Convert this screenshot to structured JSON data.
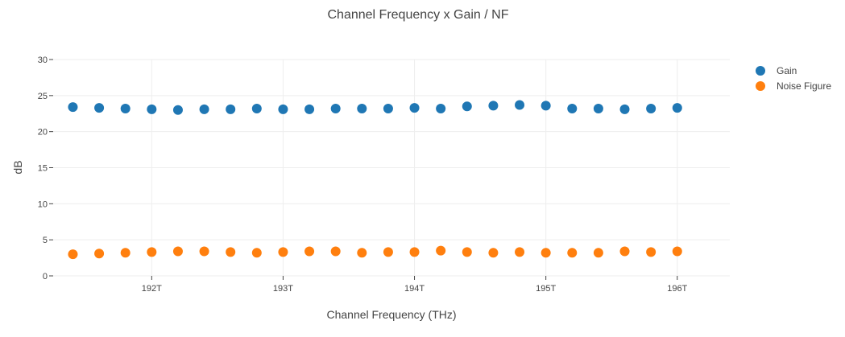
{
  "chart_data": {
    "type": "scatter",
    "title": "Channel Frequency x Gain / NF",
    "xlabel": "Channel Frequency (THz)",
    "ylabel": "dB",
    "xlim": [
      191.25,
      196.4
    ],
    "ylim": [
      0,
      30
    ],
    "x_ticks": [
      192,
      193,
      194,
      195,
      196
    ],
    "x_tick_labels": [
      "192T",
      "193T",
      "194T",
      "195T",
      "196T"
    ],
    "y_ticks": [
      0,
      5,
      10,
      15,
      20,
      25,
      30
    ],
    "y_tick_labels": [
      "0",
      "5",
      "10",
      "15",
      "20",
      "25",
      "30"
    ],
    "grid": true,
    "legend_position": "top-right",
    "x": [
      191.4,
      191.6,
      191.8,
      192.0,
      192.2,
      192.4,
      192.6,
      192.8,
      193.0,
      193.2,
      193.4,
      193.6,
      193.8,
      194.0,
      194.2,
      194.4,
      194.6,
      194.8,
      195.0,
      195.2,
      195.4,
      195.6,
      195.8,
      196.0
    ],
    "series": [
      {
        "name": "Gain",
        "color": "#1f77b4",
        "values": [
          23.4,
          23.3,
          23.2,
          23.1,
          23.0,
          23.1,
          23.1,
          23.2,
          23.1,
          23.1,
          23.2,
          23.2,
          23.2,
          23.3,
          23.2,
          23.5,
          23.6,
          23.7,
          23.6,
          23.2,
          23.2,
          23.1,
          23.2,
          23.3
        ]
      },
      {
        "name": "Noise Figure",
        "color": "#ff7f0e",
        "values": [
          3.0,
          3.1,
          3.2,
          3.3,
          3.4,
          3.4,
          3.3,
          3.2,
          3.3,
          3.4,
          3.4,
          3.2,
          3.3,
          3.3,
          3.5,
          3.3,
          3.2,
          3.3,
          3.2,
          3.2,
          3.2,
          3.4,
          3.3,
          3.4
        ]
      }
    ]
  }
}
